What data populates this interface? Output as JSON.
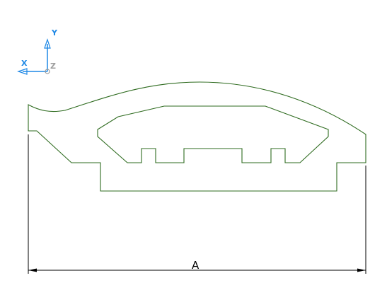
{
  "triad": {
    "y_label": "Y",
    "x_label": "X",
    "z_label": "Z",
    "y_color": "#1e88e5",
    "x_color": "#1e88e5",
    "z_color": "#9e9e9e"
  },
  "profile": {
    "stroke_color": "#2e6b1f"
  },
  "dimension": {
    "label": "A",
    "color": "#000000"
  }
}
